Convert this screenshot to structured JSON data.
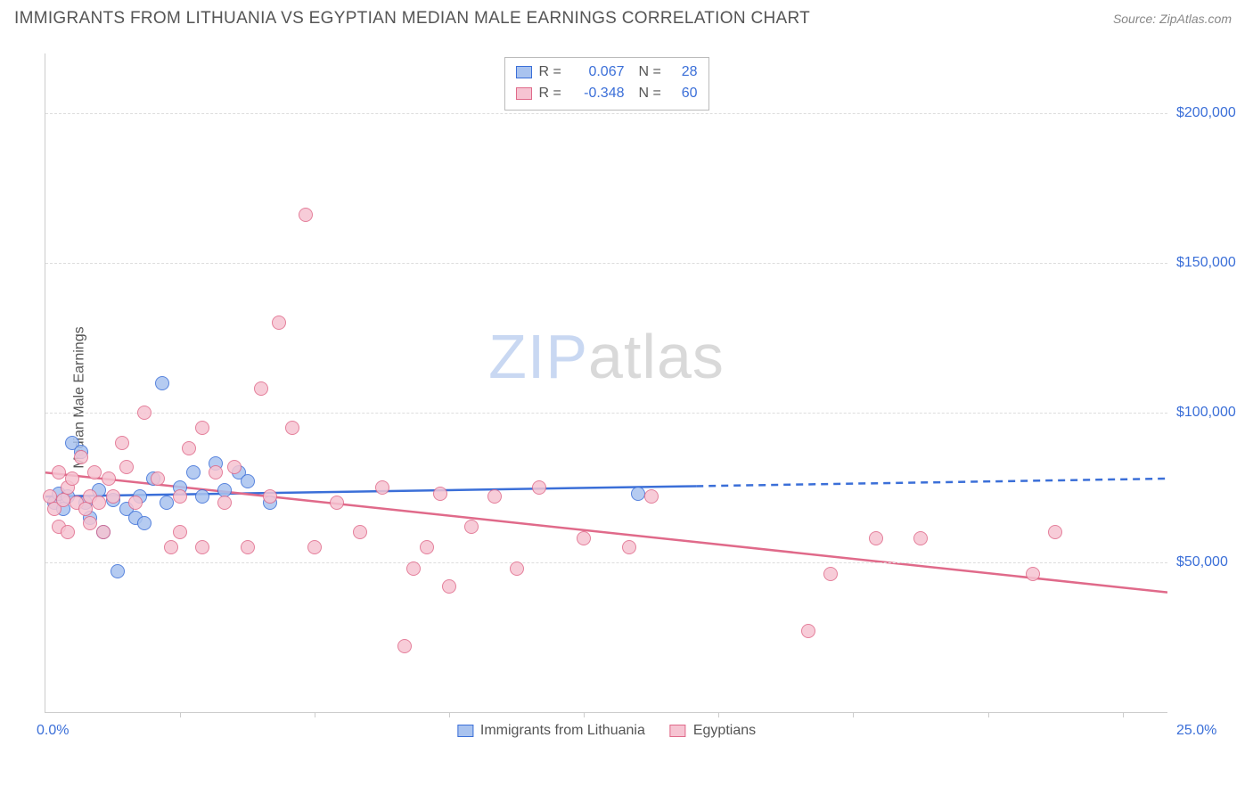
{
  "header": {
    "title": "IMMIGRANTS FROM LITHUANIA VS EGYPTIAN MEDIAN MALE EARNINGS CORRELATION CHART",
    "source": "Source: ZipAtlas.com"
  },
  "watermark": {
    "part1": "ZIP",
    "part2": "atlas"
  },
  "chart": {
    "type": "scatter",
    "yaxis_title": "Median Male Earnings",
    "background_color": "#ffffff",
    "grid_color": "#dddddd",
    "axis_color": "#cccccc",
    "text_color": "#555555",
    "value_color": "#3b6fd8",
    "xlim": [
      0,
      25
    ],
    "ylim": [
      0,
      220000
    ],
    "xtick_min_label": "0.0%",
    "xtick_max_label": "25.0%",
    "xtick_positions_pct": [
      12,
      24,
      36,
      48,
      60,
      72,
      84,
      96
    ],
    "yticks": [
      {
        "value": 50000,
        "label": "$50,000"
      },
      {
        "value": 100000,
        "label": "$100,000"
      },
      {
        "value": 150000,
        "label": "$150,000"
      },
      {
        "value": 200000,
        "label": "$200,000"
      }
    ],
    "point_radius": 8,
    "point_stroke_width": 1.5,
    "point_fill_opacity": 0.35,
    "series": [
      {
        "name": "Immigrants from Lithuania",
        "stroke": "#3b6fd8",
        "fill": "#a9c3ef",
        "R": "0.067",
        "N": "28",
        "trend": {
          "y_at_x0": 72000,
          "y_at_x25": 78000,
          "solid_until_x": 14.5
        },
        "points": [
          [
            0.2,
            70000
          ],
          [
            0.3,
            73000
          ],
          [
            0.4,
            68000
          ],
          [
            0.5,
            72000
          ],
          [
            0.6,
            90000
          ],
          [
            0.8,
            87000
          ],
          [
            0.9,
            70000
          ],
          [
            1.0,
            65000
          ],
          [
            1.2,
            74000
          ],
          [
            1.3,
            60000
          ],
          [
            1.5,
            71000
          ],
          [
            1.6,
            47000
          ],
          [
            1.8,
            68000
          ],
          [
            2.0,
            65000
          ],
          [
            2.1,
            72000
          ],
          [
            2.2,
            63000
          ],
          [
            2.4,
            78000
          ],
          [
            2.6,
            110000
          ],
          [
            2.7,
            70000
          ],
          [
            3.0,
            75000
          ],
          [
            3.3,
            80000
          ],
          [
            3.5,
            72000
          ],
          [
            3.8,
            83000
          ],
          [
            4.0,
            74000
          ],
          [
            4.3,
            80000
          ],
          [
            4.5,
            77000
          ],
          [
            5.0,
            70000
          ],
          [
            13.2,
            73000
          ]
        ]
      },
      {
        "name": "Egyptians",
        "stroke": "#e06a8a",
        "fill": "#f6c4d2",
        "R": "-0.348",
        "N": "60",
        "trend": {
          "y_at_x0": 80000,
          "y_at_x25": 40000,
          "solid_until_x": 25
        },
        "points": [
          [
            0.1,
            72000
          ],
          [
            0.2,
            68000
          ],
          [
            0.3,
            80000
          ],
          [
            0.3,
            62000
          ],
          [
            0.4,
            71000
          ],
          [
            0.5,
            75000
          ],
          [
            0.5,
            60000
          ],
          [
            0.6,
            78000
          ],
          [
            0.7,
            70000
          ],
          [
            0.8,
            85000
          ],
          [
            0.9,
            68000
          ],
          [
            1.0,
            72000
          ],
          [
            1.0,
            63000
          ],
          [
            1.1,
            80000
          ],
          [
            1.2,
            70000
          ],
          [
            1.3,
            60000
          ],
          [
            1.4,
            78000
          ],
          [
            1.5,
            72000
          ],
          [
            1.7,
            90000
          ],
          [
            1.8,
            82000
          ],
          [
            2.0,
            70000
          ],
          [
            2.2,
            100000
          ],
          [
            2.5,
            78000
          ],
          [
            2.8,
            55000
          ],
          [
            3.0,
            72000
          ],
          [
            3.0,
            60000
          ],
          [
            3.2,
            88000
          ],
          [
            3.5,
            95000
          ],
          [
            3.5,
            55000
          ],
          [
            3.8,
            80000
          ],
          [
            4.0,
            70000
          ],
          [
            4.2,
            82000
          ],
          [
            4.5,
            55000
          ],
          [
            4.8,
            108000
          ],
          [
            5.0,
            72000
          ],
          [
            5.2,
            130000
          ],
          [
            5.5,
            95000
          ],
          [
            5.8,
            166000
          ],
          [
            6.0,
            55000
          ],
          [
            6.5,
            70000
          ],
          [
            7.0,
            60000
          ],
          [
            7.5,
            75000
          ],
          [
            8.0,
            22000
          ],
          [
            8.2,
            48000
          ],
          [
            8.5,
            55000
          ],
          [
            8.8,
            73000
          ],
          [
            9.0,
            42000
          ],
          [
            9.5,
            62000
          ],
          [
            10.0,
            72000
          ],
          [
            10.5,
            48000
          ],
          [
            11.0,
            75000
          ],
          [
            12.0,
            58000
          ],
          [
            13.0,
            55000
          ],
          [
            13.5,
            72000
          ],
          [
            17.0,
            27000
          ],
          [
            17.5,
            46000
          ],
          [
            18.5,
            58000
          ],
          [
            19.5,
            58000
          ],
          [
            22.0,
            46000
          ],
          [
            22.5,
            60000
          ]
        ]
      }
    ],
    "legend_labels": {
      "r": "R =",
      "n": "N ="
    }
  }
}
